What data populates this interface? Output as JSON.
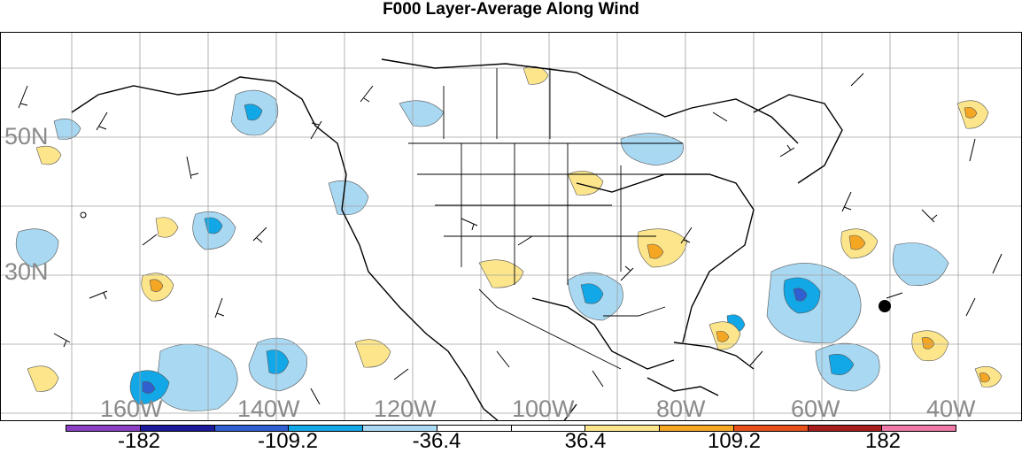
{
  "title": "F000 Layer-Average Along Wind",
  "map": {
    "lat_labels": [
      "50N",
      "30N"
    ],
    "lon_labels": [
      "160W",
      "140W",
      "120W",
      "100W",
      "80W",
      "60W",
      "40W"
    ]
  },
  "colorbar": {
    "colors": [
      "#8b3fc4",
      "#1a1a9a",
      "#2f5fd0",
      "#12a8e8",
      "#a8d8f2",
      "#ffffff",
      "#ffffff",
      "#fce58a",
      "#f5a623",
      "#e8501a",
      "#a81d1d",
      "#ee79a8"
    ],
    "labels": [
      "-182",
      "-109.2",
      "-36.4",
      "36.4",
      "109.2",
      "182"
    ]
  },
  "marker": {
    "label": "station-dot"
  }
}
